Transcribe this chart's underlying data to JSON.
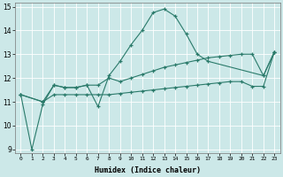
{
  "title": "",
  "xlabel": "Humidex (Indice chaleur)",
  "ylabel": "",
  "bg_color": "#cce8e8",
  "line_color": "#2a7a6a",
  "grid_color": "#ffffff",
  "ylim": [
    9,
    15
  ],
  "xlim": [
    -0.5,
    23.5
  ],
  "yticks": [
    9,
    10,
    11,
    12,
    13,
    14,
    15
  ],
  "xticks": [
    0,
    1,
    2,
    3,
    4,
    5,
    6,
    7,
    8,
    9,
    10,
    11,
    12,
    13,
    14,
    15,
    16,
    17,
    18,
    19,
    20,
    21,
    22,
    23
  ],
  "series": [
    {
      "x": [
        0,
        1,
        2,
        3,
        4,
        5,
        6,
        7,
        8,
        9,
        10,
        11,
        12,
        13,
        14,
        15,
        16,
        17,
        22,
        23
      ],
      "y": [
        11.3,
        9.0,
        10.9,
        11.7,
        11.6,
        11.6,
        11.7,
        10.8,
        12.1,
        12.7,
        13.4,
        14.0,
        14.75,
        14.9,
        14.6,
        13.85,
        13.0,
        12.7,
        12.1,
        13.1
      ]
    },
    {
      "x": [
        0,
        2,
        3,
        4,
        5,
        6,
        7,
        8,
        9,
        10,
        11,
        12,
        13,
        14,
        15,
        16,
        17,
        18,
        19,
        20,
        21,
        22,
        23
      ],
      "y": [
        11.3,
        11.0,
        11.7,
        11.6,
        11.6,
        11.7,
        11.7,
        12.0,
        11.85,
        12.0,
        12.15,
        12.3,
        12.45,
        12.55,
        12.65,
        12.75,
        12.85,
        12.9,
        12.95,
        13.0,
        13.0,
        12.1,
        13.1
      ]
    },
    {
      "x": [
        0,
        2,
        3,
        4,
        5,
        6,
        7,
        8,
        9,
        10,
        11,
        12,
        13,
        14,
        15,
        16,
        17,
        18,
        19,
        20,
        21,
        22,
        23
      ],
      "y": [
        11.3,
        11.0,
        11.3,
        11.3,
        11.3,
        11.3,
        11.3,
        11.3,
        11.35,
        11.4,
        11.45,
        11.5,
        11.55,
        11.6,
        11.65,
        11.7,
        11.75,
        11.8,
        11.85,
        11.85,
        11.65,
        11.65,
        13.1
      ]
    }
  ]
}
